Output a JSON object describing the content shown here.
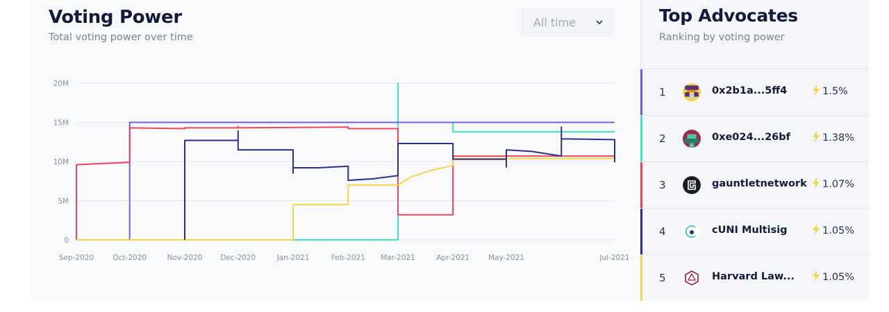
{
  "voting_power": {
    "title": "Voting Power",
    "subtitle": "Total voting power over time",
    "time_filter": {
      "selected": "All time",
      "icon": "chevron-down-icon"
    }
  },
  "top_advocates": {
    "title": "Top Advocates",
    "subtitle": "Ranking by voting power",
    "items": [
      {
        "rank": "1",
        "name": "0x2b1a...5ff4",
        "pct": "1.5%",
        "color": "#6f5ce6",
        "avatar": "pixel-avatar-icon"
      },
      {
        "rank": "2",
        "name": "0xe024...26bf",
        "pct": "1.38%",
        "color": "#3ee0c8",
        "avatar": "pixel-avatar-icon"
      },
      {
        "rank": "3",
        "name": "gauntletnetwork",
        "pct": "1.07%",
        "color": "#e8455f",
        "avatar": "gauntlet-logo-icon"
      },
      {
        "rank": "4",
        "name": "cUNI Multisig",
        "pct": "1.05%",
        "color": "#2a2f8a",
        "avatar": "cuni-logo-icon"
      },
      {
        "rank": "5",
        "name": "Harvard Law...",
        "pct": "1.05%",
        "color": "#f2d64b",
        "avatar": "harvard-law-logo-icon"
      }
    ]
  },
  "chart_data": {
    "type": "line",
    "ylim": [
      0,
      20
    ],
    "yticks": [
      {
        "value": 0,
        "label": "0"
      },
      {
        "value": 5,
        "label": "5M"
      },
      {
        "value": 10,
        "label": "10M"
      },
      {
        "value": 15,
        "label": "15M"
      },
      {
        "value": 20,
        "label": "20M"
      }
    ],
    "xlim": [
      "2020-09-01",
      "2021-07-01"
    ],
    "xticks": [
      {
        "value": "2020-09-01",
        "label": "Sep-2020"
      },
      {
        "value": "2020-10-01",
        "label": "Oct-2020"
      },
      {
        "value": "2020-11-01",
        "label": "Nov-2020"
      },
      {
        "value": "2020-12-01",
        "label": "Dec-2020"
      },
      {
        "value": "2021-01-01",
        "label": "Jan-2021"
      },
      {
        "value": "2021-02-01",
        "label": "Feb-2021"
      },
      {
        "value": "2021-03-01",
        "label": "Mar-2021"
      },
      {
        "value": "2021-04-01",
        "label": "Apr-2021"
      },
      {
        "value": "2021-05-01",
        "label": "May-2021"
      },
      {
        "value": "2021-07-01",
        "label": "Jul-2021"
      }
    ],
    "series": [
      {
        "color": "#3ee0c8",
        "points": [
          [
            "2020-09-01",
            0
          ],
          [
            "2021-03-01",
            0
          ],
          [
            "2021-03-01",
            2.4
          ],
          [
            "2021-03-01",
            20
          ],
          [
            "2021-03-01",
            15
          ],
          [
            "2021-04-01",
            15
          ],
          [
            "2021-04-01",
            13.8
          ],
          [
            "2021-07-01",
            13.8
          ]
        ]
      },
      {
        "color": "#6f5ce6",
        "points": [
          [
            "2020-09-01",
            0
          ],
          [
            "2020-10-01",
            0
          ],
          [
            "2020-10-01",
            15
          ],
          [
            "2021-07-01",
            15
          ]
        ]
      },
      {
        "color": "#e8455f",
        "points": [
          [
            "2020-09-01",
            0
          ],
          [
            "2020-09-01",
            9.6
          ],
          [
            "2020-10-01",
            9.9
          ],
          [
            "2020-10-01",
            14.3
          ],
          [
            "2020-11-01",
            14.2
          ],
          [
            "2020-11-01",
            14.3
          ],
          [
            "2020-12-01",
            14.3
          ],
          [
            "2020-12-01",
            14.5
          ],
          [
            "2020-12-01",
            14.3
          ],
          [
            "2021-02-01",
            14.4
          ],
          [
            "2021-02-01",
            14.2
          ],
          [
            "2021-03-01",
            14.2
          ],
          [
            "2021-03-01",
            3.2
          ],
          [
            "2021-04-01",
            3.2
          ],
          [
            "2021-04-01",
            10.7
          ],
          [
            "2021-07-01",
            10.7
          ]
        ]
      },
      {
        "color": "#f2d64b",
        "points": [
          [
            "2020-09-01",
            0
          ],
          [
            "2021-01-01",
            0
          ],
          [
            "2021-01-01",
            4.5
          ],
          [
            "2021-02-01",
            4.5
          ],
          [
            "2021-02-01",
            7.0
          ],
          [
            "2021-03-01",
            7.0
          ],
          [
            "2021-03-01",
            7.0
          ],
          [
            "2021-03-08",
            8.0
          ],
          [
            "2021-03-20",
            8.9
          ],
          [
            "2021-04-01",
            9.5
          ],
          [
            "2021-04-01",
            10.4
          ],
          [
            "2021-07-01",
            10.4
          ]
        ]
      },
      {
        "color": "#2a2f8a",
        "points": [
          [
            "2020-11-01",
            0
          ],
          [
            "2020-11-01",
            12.7
          ],
          [
            "2020-12-01",
            12.7
          ],
          [
            "2020-12-01",
            13.9
          ],
          [
            "2020-12-01",
            11.5
          ],
          [
            "2021-01-01",
            11.5
          ],
          [
            "2021-01-01",
            8.5
          ],
          [
            "2021-01-01",
            9.2
          ],
          [
            "2021-01-15",
            9.2
          ],
          [
            "2021-02-01",
            9.4
          ],
          [
            "2021-02-01",
            7.6
          ],
          [
            "2021-02-15",
            7.8
          ],
          [
            "2021-03-01",
            8.2
          ],
          [
            "2021-03-01",
            12.3
          ],
          [
            "2021-04-01",
            12.3
          ],
          [
            "2021-04-01",
            10.3
          ],
          [
            "2021-05-01",
            10.3
          ],
          [
            "2021-05-01",
            9.3
          ],
          [
            "2021-05-01",
            11.5
          ],
          [
            "2021-05-15",
            11.3
          ],
          [
            "2021-06-01",
            10.7
          ],
          [
            "2021-06-01",
            14.4
          ],
          [
            "2021-06-01",
            12.9
          ],
          [
            "2021-07-01",
            12.8
          ],
          [
            "2021-07-01",
            9.9
          ]
        ]
      }
    ]
  }
}
